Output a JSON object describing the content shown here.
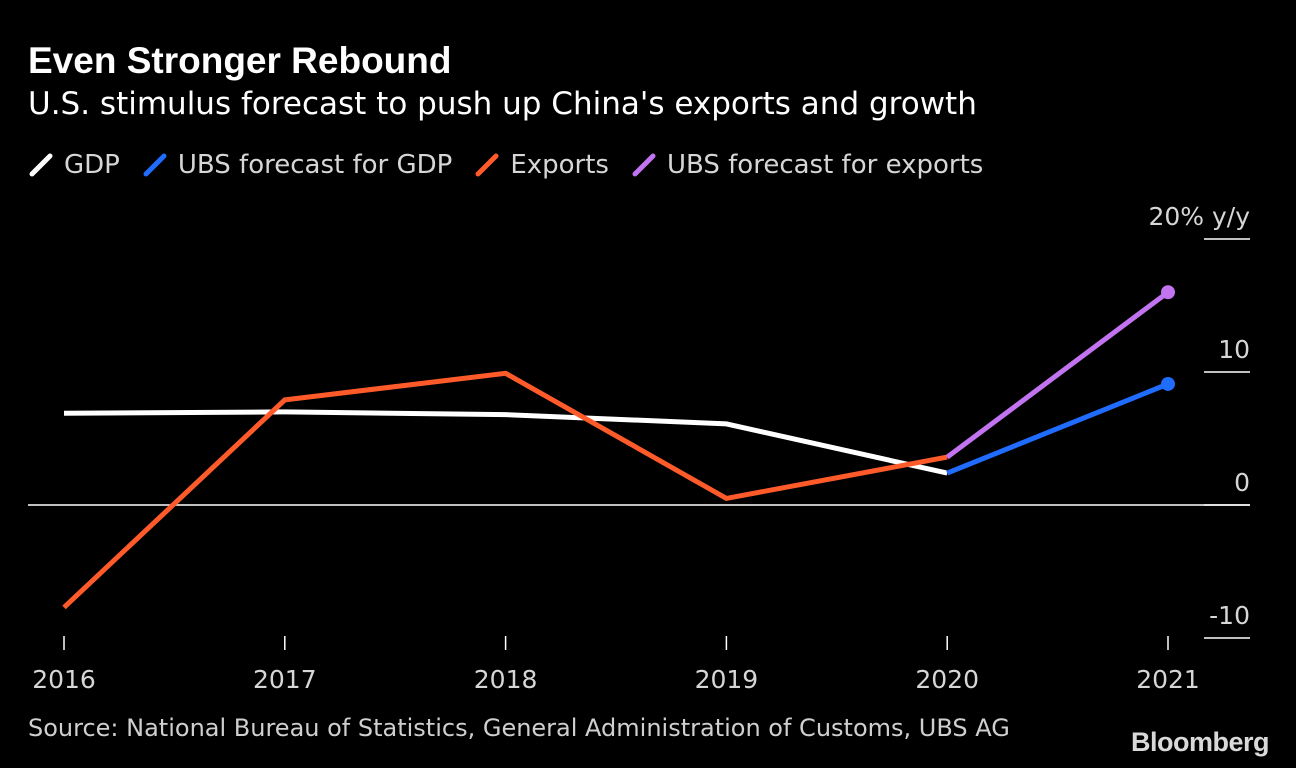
{
  "header": {
    "title": "Even Stronger Rebound",
    "subtitle": "U.S. stimulus forecast to push up China's exports and growth"
  },
  "footer": {
    "source": "Source: National Bureau of Statistics, General Administration of Customs, UBS AG",
    "brand": "Bloomberg"
  },
  "colors": {
    "background": "#000000",
    "gdp": "#ffffff",
    "gdp_forecast": "#1f6cff",
    "exports": "#ff5a2a",
    "exports_forecast": "#c173f0"
  },
  "chart_data": {
    "type": "line",
    "title": "Even Stronger Rebound",
    "subtitle": "U.S. stimulus forecast to push up China's exports and growth",
    "x": [
      "2016",
      "2017",
      "2018",
      "2019",
      "2020",
      "2021"
    ],
    "ylim": [
      -10,
      20
    ],
    "yticks": [
      -10,
      0,
      10,
      20
    ],
    "ytick_labels": [
      "-10",
      "0",
      "10",
      "20% y/y"
    ],
    "axis_side": "right",
    "zero_line": true,
    "legend_position": "top-left",
    "series": [
      {
        "name": "GDP",
        "color": "#ffffff",
        "x": [
          "2016",
          "2017",
          "2018",
          "2019",
          "2020"
        ],
        "values": [
          6.9,
          7.0,
          6.8,
          6.1,
          2.4
        ]
      },
      {
        "name": "UBS forecast for GDP",
        "color": "#1f6cff",
        "x": [
          "2020",
          "2021"
        ],
        "values": [
          2.4,
          9.1
        ],
        "marker_end": true
      },
      {
        "name": "Exports",
        "color": "#ff5a2a",
        "x": [
          "2016",
          "2017",
          "2018",
          "2019",
          "2020"
        ],
        "values": [
          -7.7,
          7.9,
          9.9,
          0.5,
          3.6
        ]
      },
      {
        "name": "UBS forecast for exports",
        "color": "#c173f0",
        "x": [
          "2020",
          "2021"
        ],
        "values": [
          3.6,
          16.0
        ],
        "marker_end": true
      }
    ],
    "source": "Source: National Bureau of Statistics, General Administration of Customs, UBS AG"
  }
}
